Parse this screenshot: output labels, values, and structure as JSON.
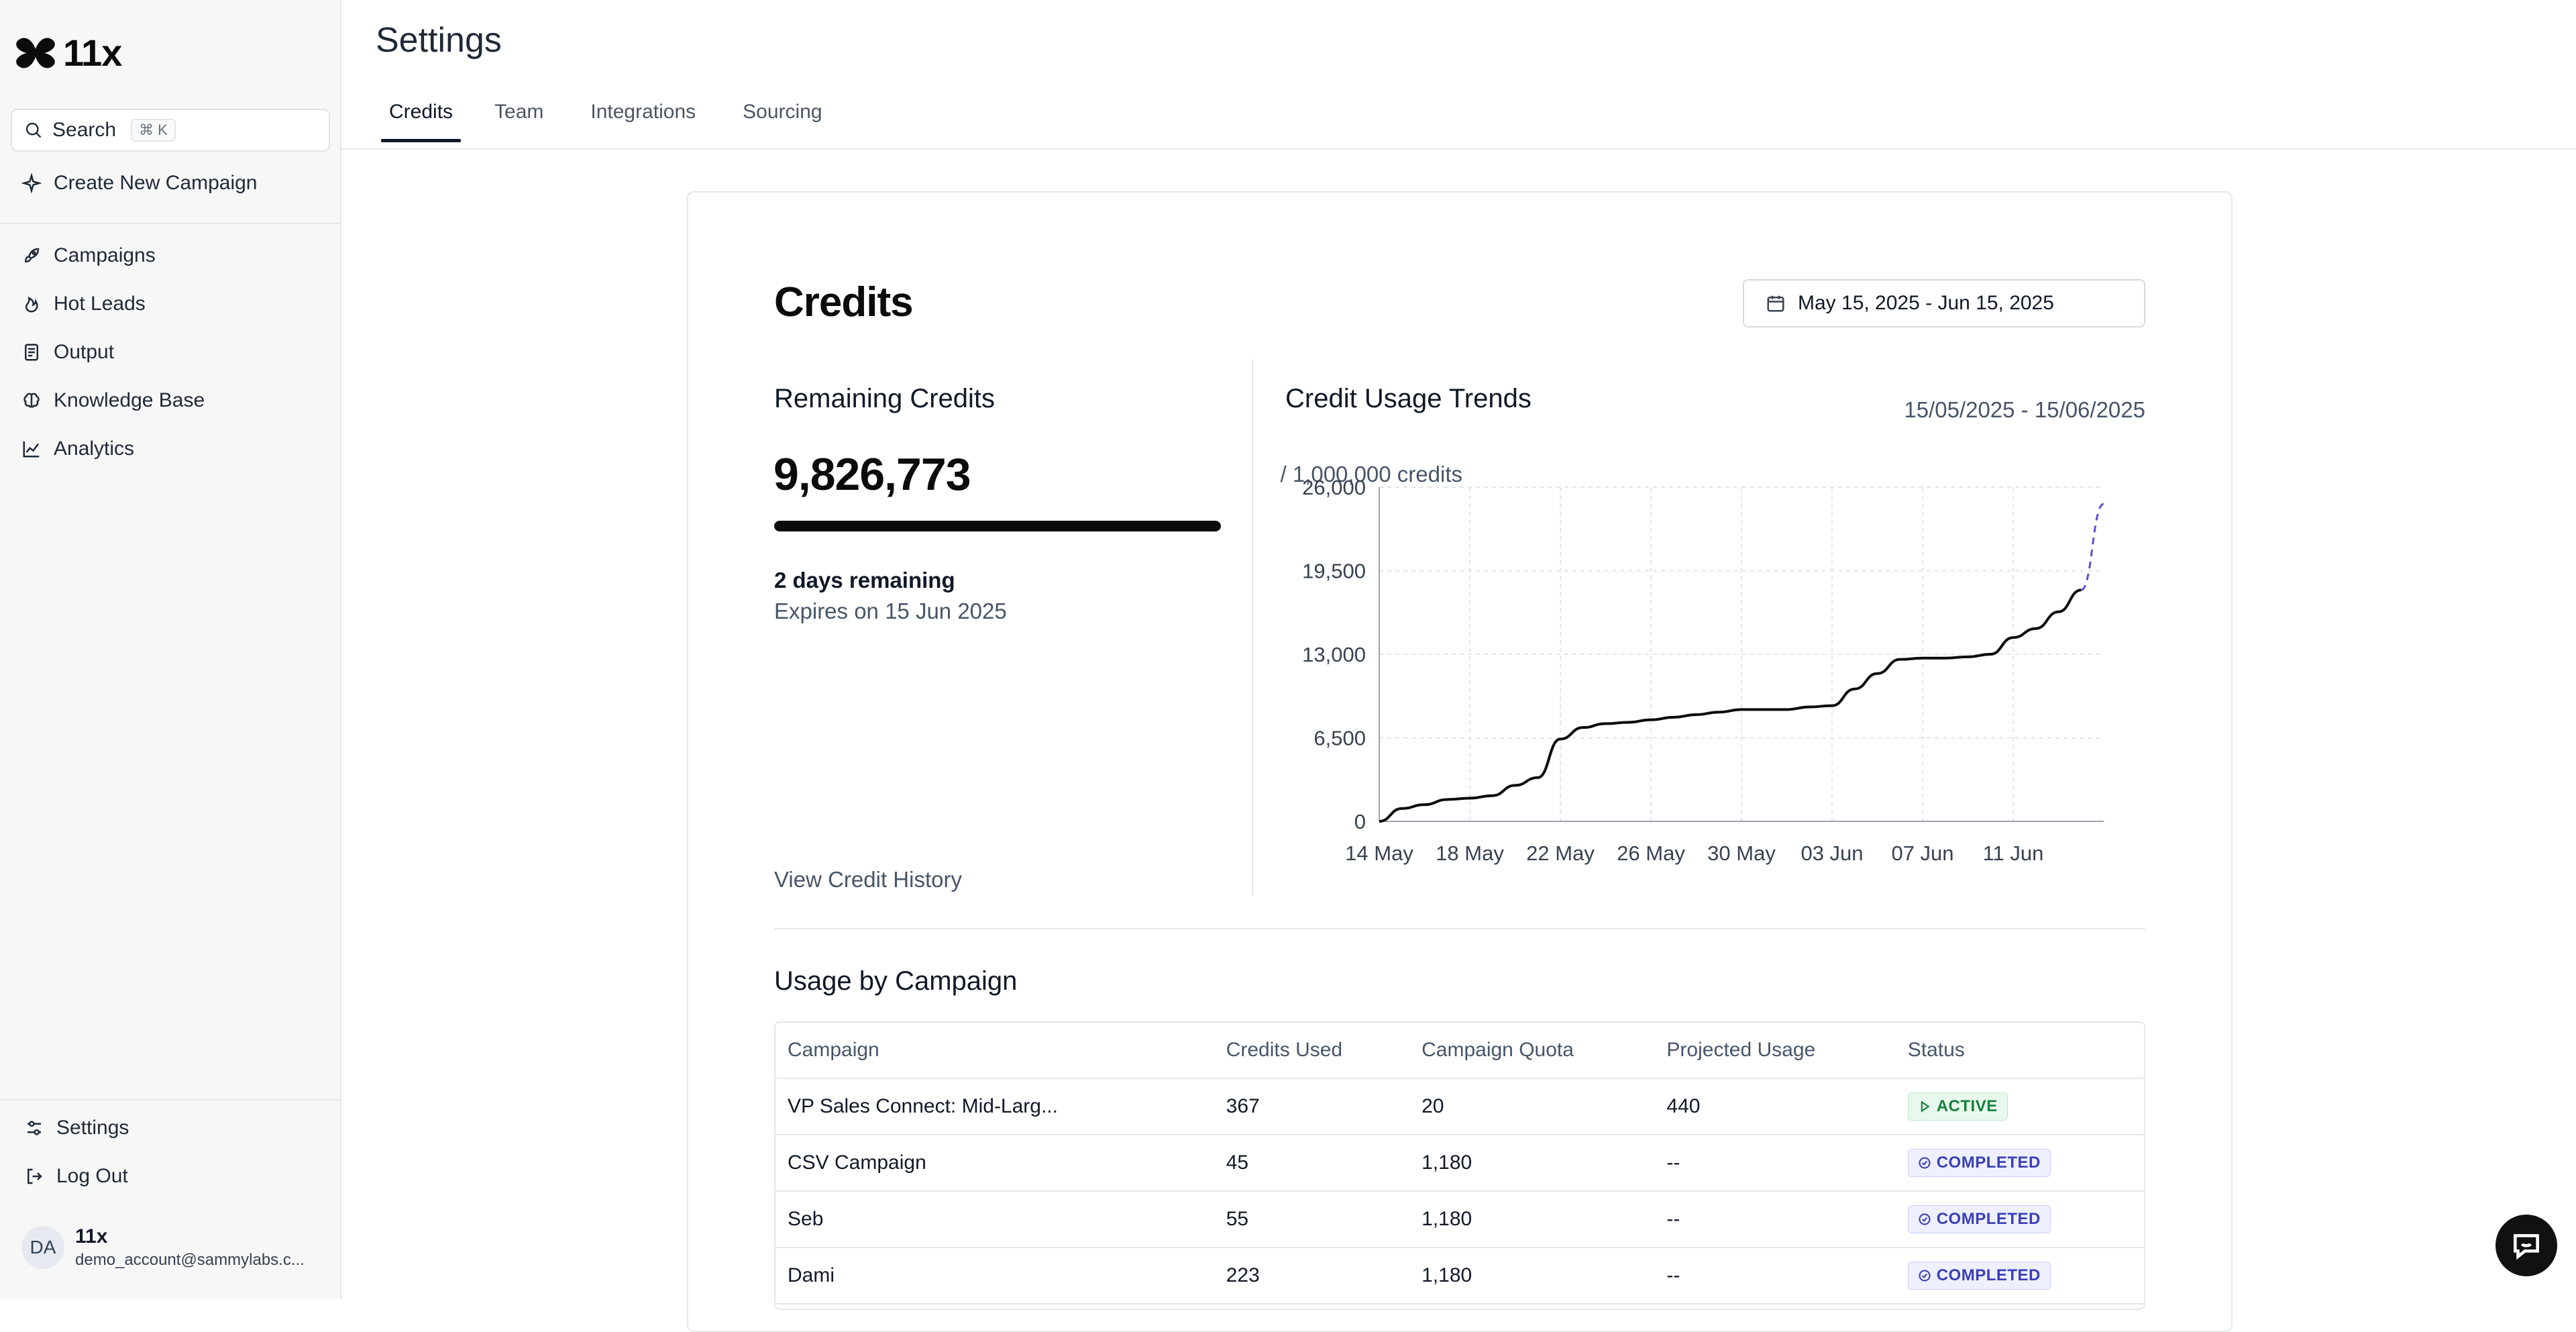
{
  "app": {
    "name": "11x"
  },
  "sidebar": {
    "search": {
      "label": "Search",
      "shortcut": "⌘ K"
    },
    "create": {
      "label": "Create New Campaign"
    },
    "items": [
      {
        "label": "Campaigns",
        "icon": "rocket-icon"
      },
      {
        "label": "Hot Leads",
        "icon": "flame-icon"
      },
      {
        "label": "Output",
        "icon": "document-icon"
      },
      {
        "label": "Knowledge Base",
        "icon": "brain-icon"
      },
      {
        "label": "Analytics",
        "icon": "chart-line-icon"
      }
    ],
    "bottom": [
      {
        "label": "Settings",
        "icon": "sliders-icon"
      },
      {
        "label": "Log Out",
        "icon": "logout-icon"
      }
    ],
    "user": {
      "initials": "DA",
      "name": "11x",
      "email": "demo_account@sammylabs.c..."
    }
  },
  "header": {
    "title": "Settings",
    "tabs": [
      "Credits",
      "Team",
      "Integrations",
      "Sourcing"
    ],
    "active_tab": "Credits"
  },
  "credits": {
    "title": "Credits",
    "date_range": "May 15, 2025 - Jun 15, 2025",
    "remaining": {
      "title": "Remaining Credits",
      "value": "9,826,773",
      "total": "/ 1,000,000 credits",
      "progress_fraction": 1.0,
      "days_remaining": "2 days remaining",
      "expires": "Expires on 15 Jun 2025",
      "history_link": "View Credit History"
    },
    "trends": {
      "title": "Credit Usage Trends",
      "range": "15/05/2025 - 15/06/2025"
    }
  },
  "chart_data": {
    "type": "line",
    "title": "Credit Usage Trends",
    "xlabel": "",
    "ylabel": "",
    "x_ticks": [
      "14 May",
      "18 May",
      "22 May",
      "26 May",
      "30 May",
      "03 Jun",
      "07 Jun",
      "11 Jun"
    ],
    "y_ticks": [
      "0",
      "6,500",
      "13,000",
      "19,500",
      "26,000"
    ],
    "ylim": [
      0,
      26000
    ],
    "grid": true,
    "series": [
      {
        "style": "solid",
        "color": "#0b0b0b",
        "x": [
          14,
          15,
          16,
          17,
          18,
          19,
          20,
          21,
          22,
          23,
          24,
          25,
          26,
          27,
          28,
          29,
          30,
          31,
          32,
          33,
          34,
          35,
          36,
          37,
          38,
          39,
          40,
          41,
          42,
          43,
          44,
          45
        ],
        "values": [
          0,
          1000,
          1300,
          1700,
          1800,
          2000,
          2800,
          3400,
          6400,
          7300,
          7600,
          7700,
          7900,
          8100,
          8300,
          8500,
          8700,
          8700,
          8700,
          8900,
          9000,
          10300,
          11500,
          12600,
          12700,
          12700,
          12800,
          13000,
          14300,
          15000,
          16300,
          18000
        ]
      },
      {
        "style": "dashed",
        "color": "#5b4fd6",
        "x": [
          45,
          46
        ],
        "values": [
          18000,
          24700
        ]
      }
    ]
  },
  "usage": {
    "title": "Usage by Campaign",
    "columns": [
      "Campaign",
      "Credits Used",
      "Campaign Quota",
      "Projected Usage",
      "Status"
    ],
    "rows": [
      {
        "campaign": "VP Sales Connect: Mid-Larg...",
        "used": "367",
        "quota": "20",
        "projected": "440",
        "status": "ACTIVE",
        "status_type": "active"
      },
      {
        "campaign": "CSV Campaign",
        "used": "45",
        "quota": "1,180",
        "projected": "--",
        "status": "COMPLETED",
        "status_type": "completed"
      },
      {
        "campaign": "Seb",
        "used": "55",
        "quota": "1,180",
        "projected": "--",
        "status": "COMPLETED",
        "status_type": "completed"
      },
      {
        "campaign": "Dami",
        "used": "223",
        "quota": "1,180",
        "projected": "--",
        "status": "COMPLETED",
        "status_type": "completed"
      },
      {
        "campaign": "",
        "used": "",
        "quota": "",
        "projected": "",
        "status": "",
        "status_type": ""
      }
    ]
  }
}
